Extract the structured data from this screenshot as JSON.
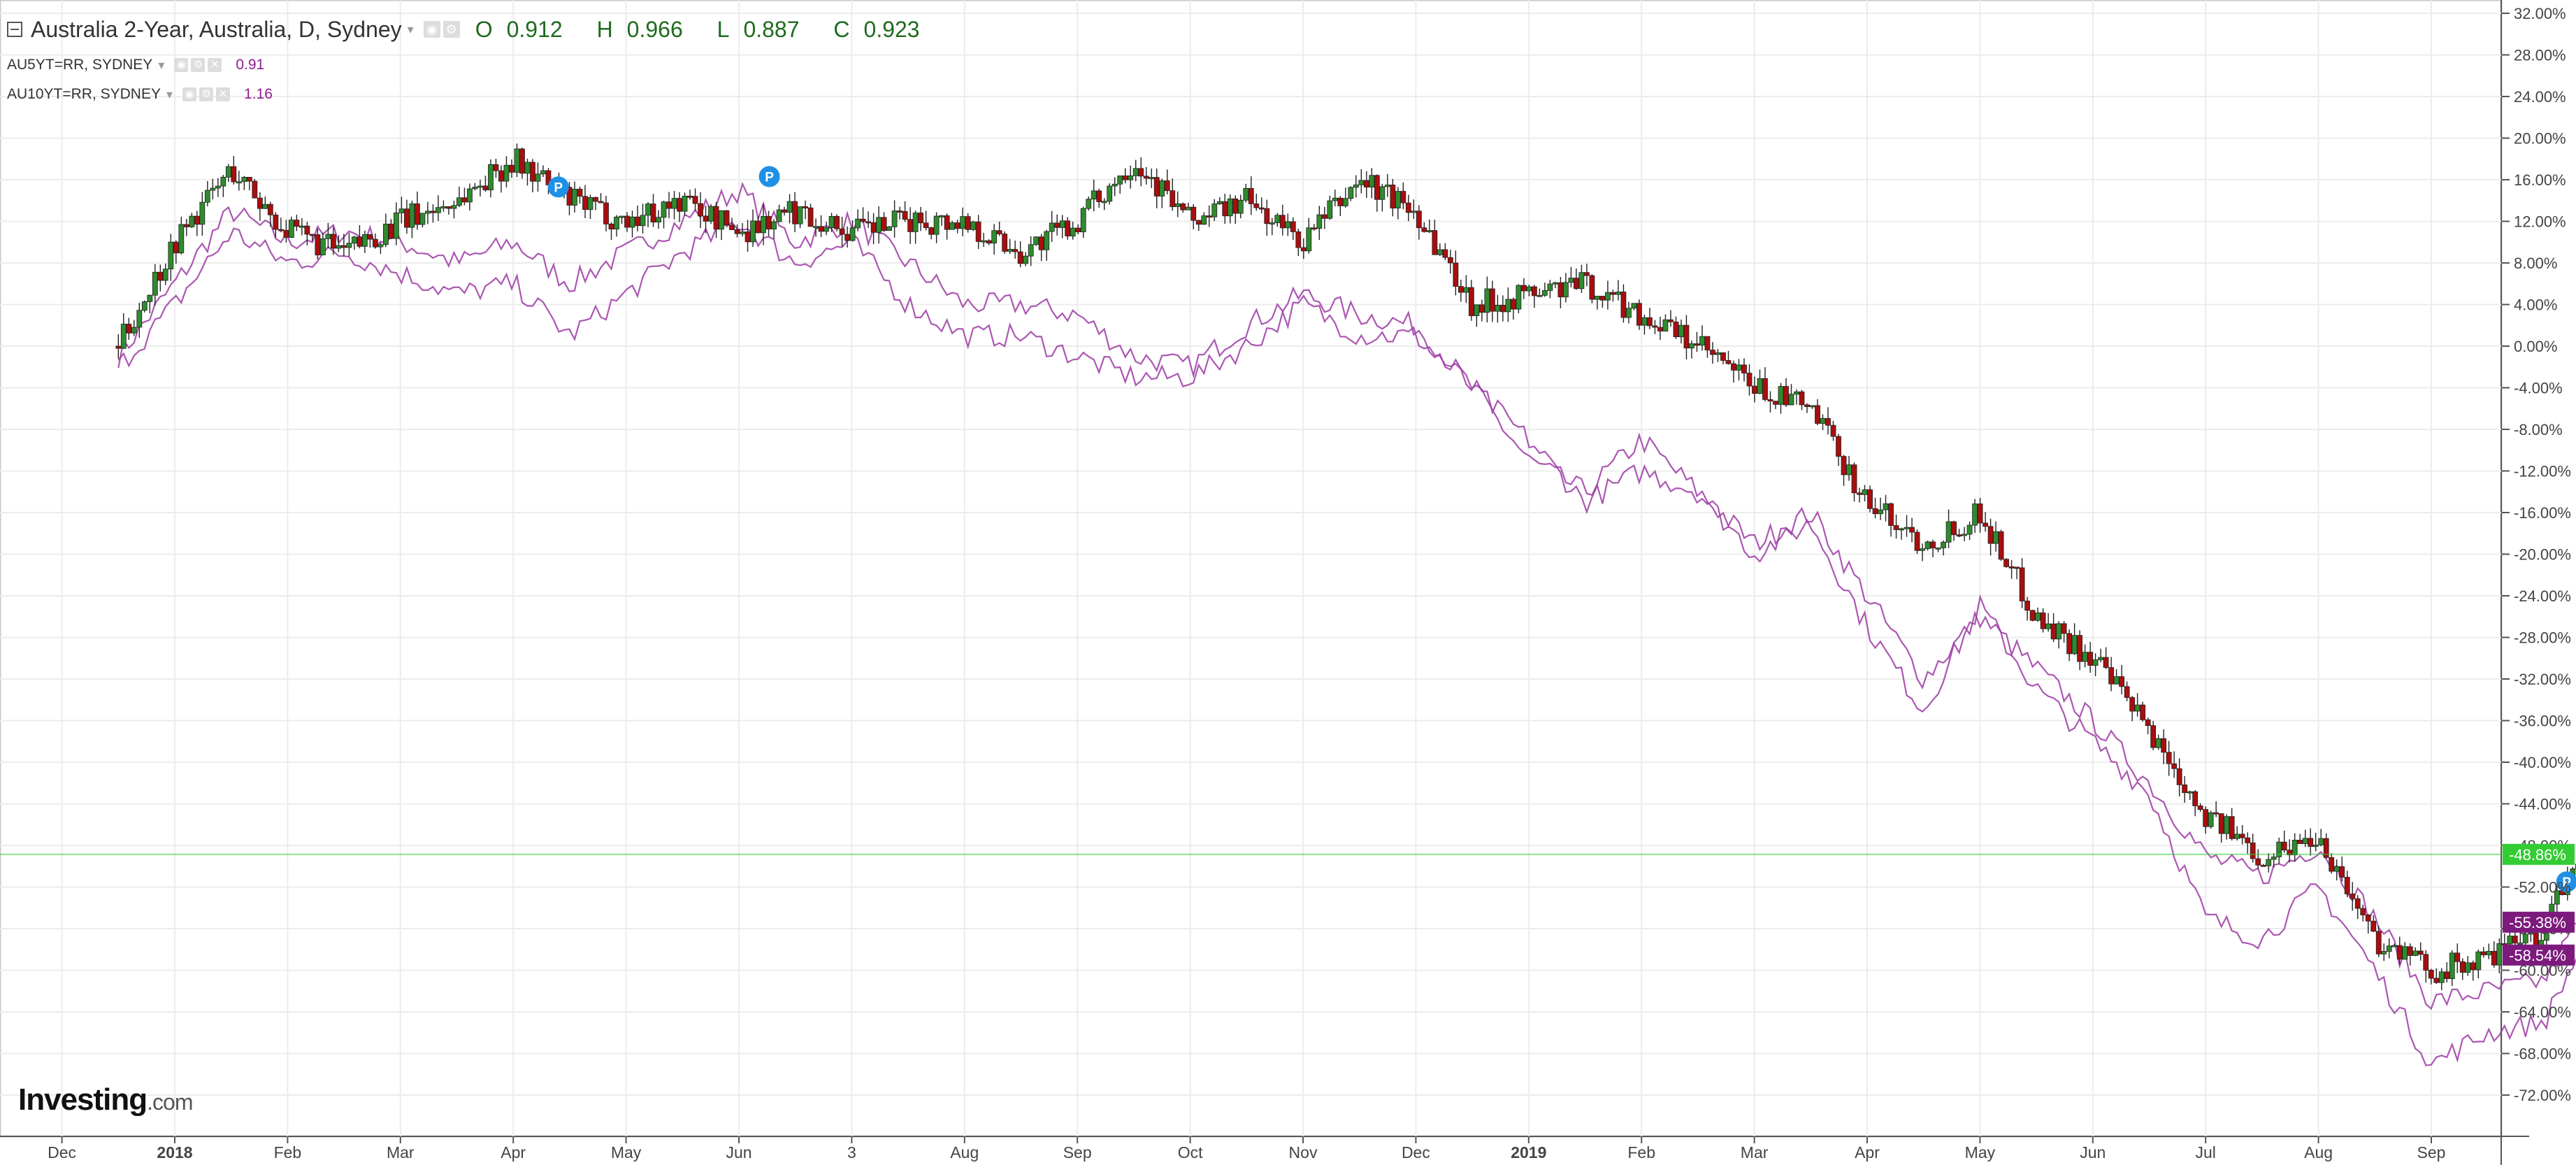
{
  "legend": {
    "main_title": "Australia 2-Year, Australia, D, Sydney",
    "open": "0.912",
    "high": "0.966",
    "low": "0.887",
    "close": "0.923",
    "open_label": "O",
    "high_label": "H",
    "low_label": "L",
    "close_label": "C",
    "series": [
      {
        "symbol": "AU5YT=RR, SYDNEY",
        "value": "0.91"
      },
      {
        "symbol": "AU10YT=RR, SYDNEY",
        "value": "1.16"
      }
    ]
  },
  "brand": {
    "name": "Investing",
    "suffix": ".com"
  },
  "colors": {
    "up": "#2e8b2e",
    "down": "#a80e0e",
    "line": "#9c3aa5",
    "current": "#33cc33",
    "label_purple": "#7d1a7d"
  },
  "chart_data": {
    "type": "line",
    "chart_style": "candlestick (main) with two percent-change line overlays",
    "ylabel": "",
    "ylim": [
      -76,
      33
    ],
    "y_axis_labels": [
      "32.00%",
      "28.00%",
      "24.00%",
      "20.00%",
      "16.00%",
      "12.00%",
      "8.00%",
      "4.00%",
      "0.00%",
      "-4.00%",
      "-8.00%",
      "-12.00%",
      "-16.00%",
      "-20.00%",
      "-24.00%",
      "-28.00%",
      "-32.00%",
      "-36.00%",
      "-40.00%",
      "-44.00%",
      "-48.00%",
      "-52.00%",
      "-56.00%",
      "-60.00%",
      "-64.00%",
      "-68.00%",
      "-72.00%"
    ],
    "x_axis_labels": [
      {
        "label": "Dec",
        "bold": false
      },
      {
        "label": "2018",
        "bold": true
      },
      {
        "label": "Feb",
        "bold": false
      },
      {
        "label": "Mar",
        "bold": false
      },
      {
        "label": "Apr",
        "bold": false
      },
      {
        "label": "May",
        "bold": false
      },
      {
        "label": "Jun",
        "bold": false
      },
      {
        "label": "3",
        "bold": false
      },
      {
        "label": "Aug",
        "bold": false
      },
      {
        "label": "Sep",
        "bold": false
      },
      {
        "label": "Oct",
        "bold": false
      },
      {
        "label": "Nov",
        "bold": false
      },
      {
        "label": "Dec",
        "bold": false
      },
      {
        "label": "2019",
        "bold": true
      },
      {
        "label": "Feb",
        "bold": false
      },
      {
        "label": "Mar",
        "bold": false
      },
      {
        "label": "Apr",
        "bold": false
      },
      {
        "label": "May",
        "bold": false
      },
      {
        "label": "Jun",
        "bold": false
      },
      {
        "label": "Jul",
        "bold": false
      },
      {
        "label": "Aug",
        "bold": false
      },
      {
        "label": "Sep",
        "bold": false
      }
    ],
    "current_labels": [
      {
        "text": "-48.86%",
        "value": -48.86,
        "color": "#33cc33"
      },
      {
        "text": "-55.38%",
        "value": -55.38,
        "color": "#7d1a7d"
      },
      {
        "text": "-58.54%",
        "value": -58.54,
        "color": "#7d1a7d"
      }
    ],
    "markers": [
      {
        "text": "P",
        "month_pos": 3.4,
        "value": 15.3
      },
      {
        "text": "P",
        "month_pos": 5.27,
        "value": 16.3
      },
      {
        "text": "P",
        "month_pos": 21.2,
        "value": -51.5
      }
    ],
    "series": [
      {
        "name": "Australia 2-Year, Australia, D, Sydney",
        "kind": "candlestick",
        "month_pos": [
          -0.5,
          0,
          0.5,
          1,
          1.5,
          2,
          2.5,
          3,
          3.5,
          4,
          4.5,
          5,
          5.5,
          6,
          6.5,
          7,
          7.5,
          8,
          8.5,
          9,
          9.5,
          10,
          10.5,
          11,
          11.5,
          12,
          12.5,
          13,
          13.5,
          14,
          14.5,
          15,
          15.5,
          16,
          16.5,
          17,
          17.5,
          18,
          18.5,
          19,
          19.5,
          20,
          20.5,
          21,
          21.3
        ],
        "values": [
          0,
          10,
          17,
          11,
          9,
          12,
          14,
          18,
          14,
          12,
          14,
          11,
          13,
          11,
          12,
          12,
          9,
          12,
          18,
          12,
          14,
          10,
          16,
          13,
          4,
          5,
          6,
          3,
          0,
          -4,
          -6,
          -15,
          -19,
          -16,
          -26,
          -30,
          -37,
          -45,
          -49,
          -47,
          -57,
          -60,
          -59,
          -56,
          -49
        ]
      },
      {
        "name": "AU5YT=RR, SYDNEY",
        "kind": "line",
        "month_pos": [
          -0.5,
          0,
          0.5,
          1,
          1.5,
          2,
          2.5,
          3,
          3.5,
          4,
          4.5,
          5,
          5.5,
          6,
          6.5,
          7,
          7.5,
          8,
          8.5,
          9,
          9.5,
          10,
          10.5,
          11,
          11.5,
          12,
          12.5,
          13,
          13.5,
          14,
          14.5,
          15,
          15.5,
          16,
          16.5,
          17,
          17.5,
          18,
          18.5,
          19,
          19.5,
          20,
          20.5,
          21,
          21.3
        ],
        "values": [
          -1,
          6,
          13,
          10,
          11,
          10,
          8,
          10,
          6,
          9,
          12,
          15,
          10,
          12,
          8,
          4,
          4,
          3,
          -1,
          -2,
          2,
          5,
          3,
          2,
          -4,
          -11,
          -14,
          -9,
          -14,
          -19,
          -16,
          -24,
          -32,
          -26,
          -31,
          -36,
          -42,
          -49,
          -51,
          -48,
          -55,
          -63,
          -62,
          -61,
          -55.4
        ]
      },
      {
        "name": "AU10YT=RR, SYDNEY",
        "kind": "line",
        "month_pos": [
          -0.5,
          0,
          0.5,
          1,
          1.5,
          2,
          2.5,
          3,
          3.5,
          4,
          4.5,
          5,
          5.5,
          6,
          6.5,
          7,
          7.5,
          8,
          8.5,
          9,
          9.5,
          10,
          10.5,
          11,
          11.5,
          12,
          12.5,
          13,
          13.5,
          14,
          14.5,
          15,
          15.5,
          16,
          16.5,
          17,
          17.5,
          18,
          18.5,
          19,
          19.5,
          20,
          20.5,
          21,
          21.3
        ],
        "values": [
          -2,
          4,
          11,
          8,
          9,
          7,
          5,
          6,
          1,
          5,
          9,
          12,
          8,
          10,
          4,
          1,
          1,
          -1,
          -3,
          -3,
          0,
          4,
          1,
          1,
          -4,
          -9,
          -15,
          -12,
          -14,
          -20,
          -17,
          -27,
          -35,
          -25,
          -33,
          -38,
          -43,
          -55,
          -57,
          -52,
          -60,
          -69,
          -66,
          -65,
          -58.5
        ]
      }
    ]
  }
}
